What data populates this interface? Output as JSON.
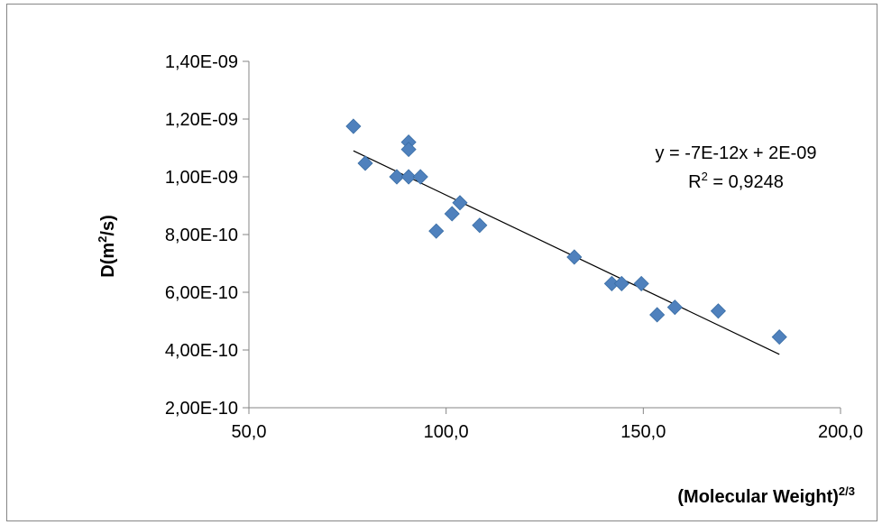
{
  "chart_data": {
    "type": "scatter",
    "xlabel_main": "(Molecular Weight)",
    "xlabel_sup": "2/3",
    "ylabel_main": "D(m",
    "ylabel_sup": "2",
    "ylabel_tail": "/s)",
    "xlim": [
      50,
      200
    ],
    "ylim": [
      2e-10,
      1.4e-09
    ],
    "x_ticks": [
      50,
      100,
      150,
      200
    ],
    "x_tick_labels": [
      "50,0",
      "100,0",
      "150,0",
      "200,0"
    ],
    "y_ticks": [
      2e-10,
      4e-10,
      6e-10,
      8e-10,
      1e-09,
      1.2e-09,
      1.4e-09
    ],
    "y_tick_labels": [
      "2,00E-10",
      "4,00E-10",
      "6,00E-10",
      "8,00E-10",
      "1,00E-09",
      "1,20E-09",
      "1,40E-09"
    ],
    "grid": false,
    "legend": "none",
    "marker_color": "#4f81bd",
    "trendline_color": "#000000",
    "points": [
      {
        "x": 76.5,
        "y": 1.175e-09
      },
      {
        "x": 79.5,
        "y": 1.047e-09
      },
      {
        "x": 87.5,
        "y": 1e-09
      },
      {
        "x": 90.5,
        "y": 1e-09
      },
      {
        "x": 90.5,
        "y": 1.12e-09
      },
      {
        "x": 90.5,
        "y": 1.095e-09
      },
      {
        "x": 93.5,
        "y": 1e-09
      },
      {
        "x": 97.5,
        "y": 8.12e-10
      },
      {
        "x": 101.5,
        "y": 8.72e-10
      },
      {
        "x": 103.5,
        "y": 9.1e-10
      },
      {
        "x": 108.5,
        "y": 8.32e-10
      },
      {
        "x": 132.5,
        "y": 7.22e-10
      },
      {
        "x": 142.0,
        "y": 6.3e-10
      },
      {
        "x": 144.5,
        "y": 6.3e-10
      },
      {
        "x": 149.5,
        "y": 6.3e-10
      },
      {
        "x": 153.5,
        "y": 5.22e-10
      },
      {
        "x": 158.0,
        "y": 5.48e-10
      },
      {
        "x": 169.0,
        "y": 5.35e-10
      },
      {
        "x": 184.5,
        "y": 4.45e-10
      }
    ],
    "trendline": {
      "x": [
        76.5,
        184.5
      ],
      "y": [
        1.09e-09,
        3.85e-10
      ]
    },
    "equation": "y = -7E-12x + 2E-09",
    "r2_main": "R",
    "r2_sup": "2",
    "r2_tail": " = 0,9248"
  }
}
